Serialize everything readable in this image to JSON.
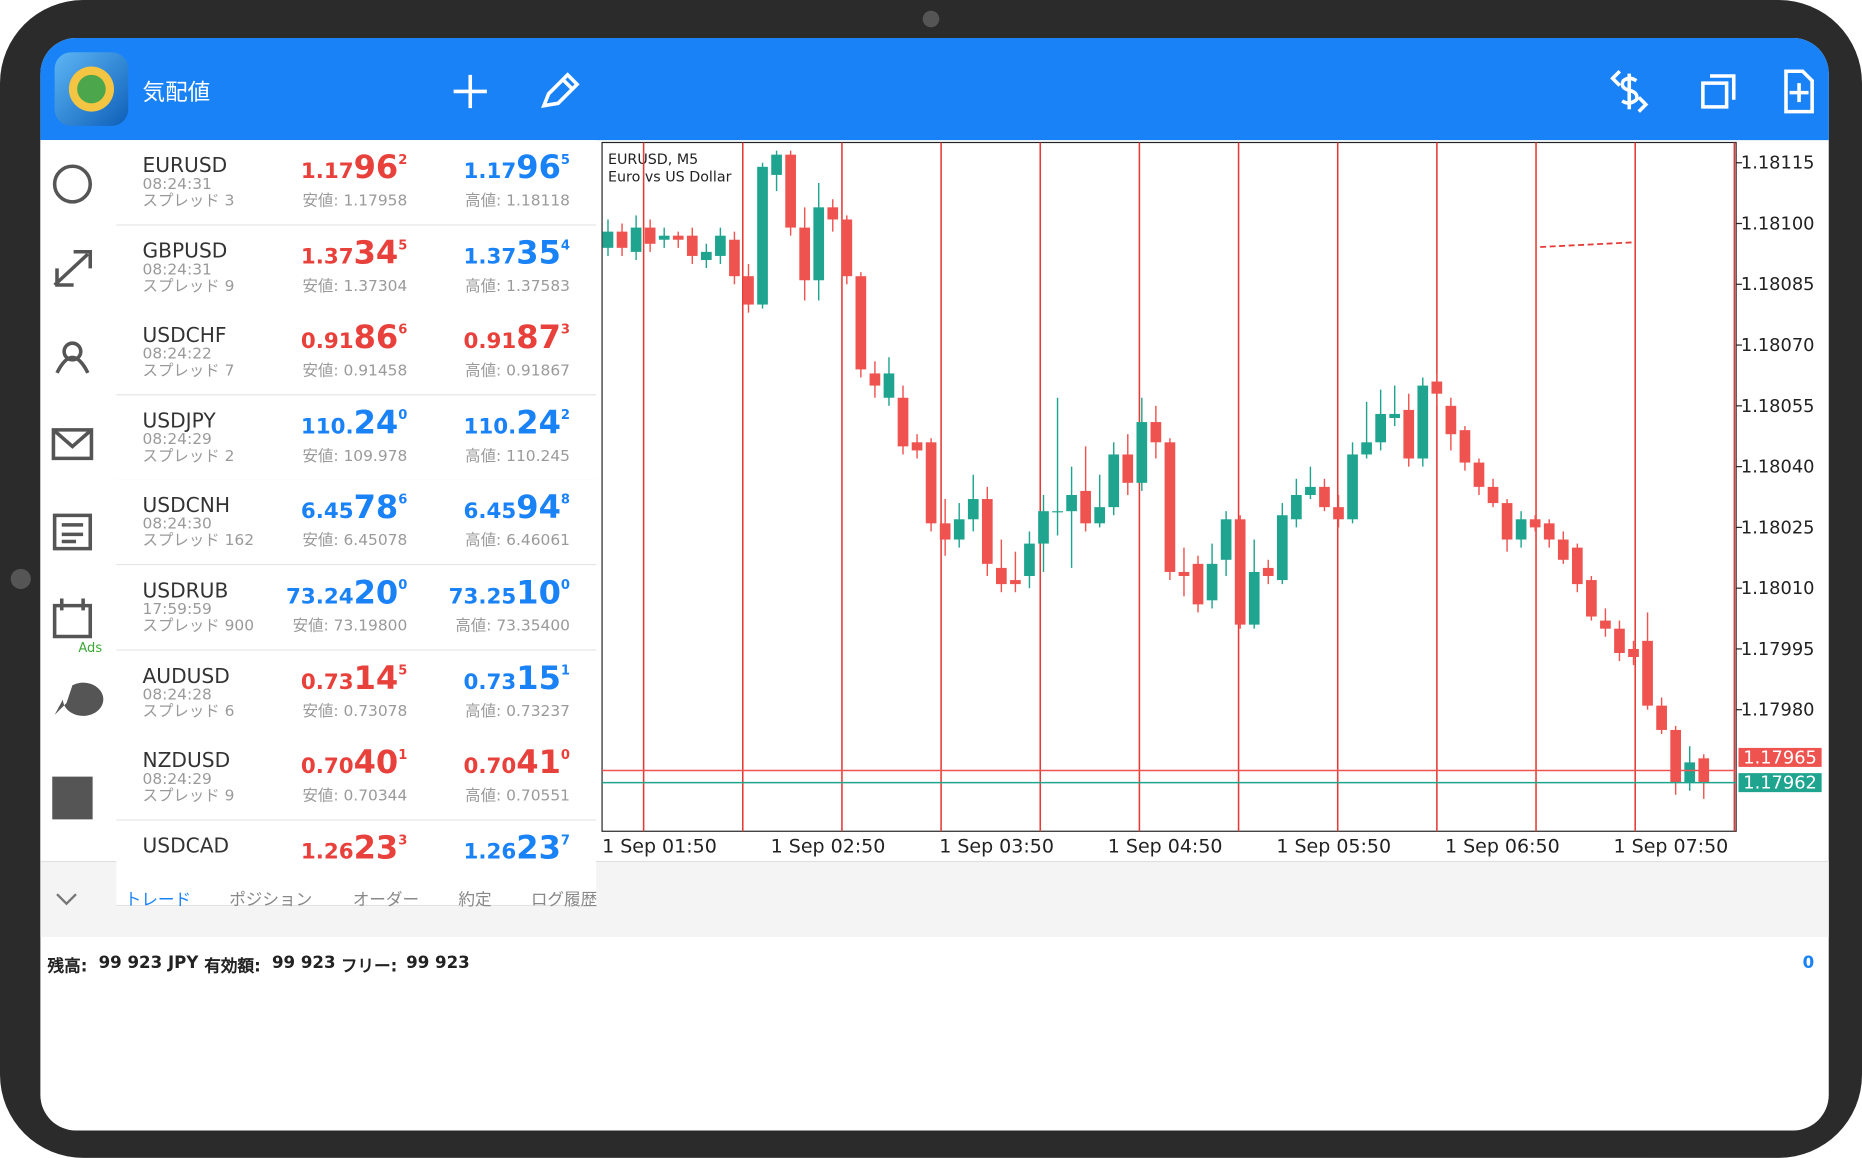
{
  "header": {
    "title": "気配値"
  },
  "sidebar": {
    "ads_label": "Ads"
  },
  "quotes": [
    {
      "symbol": "EURUSD",
      "time": "08:24:31",
      "spread": "スプレッド 3",
      "bid": [
        "1.17",
        "96",
        "2"
      ],
      "bid_color": "#e8413c",
      "low": "安値: 1.17958",
      "ask": [
        "1.17",
        "96",
        "5"
      ],
      "ask_color": "#1a82f7",
      "high": "高値: 1.18118"
    },
    {
      "symbol": "GBPUSD",
      "time": "08:24:31",
      "spread": "スプレッド 9",
      "bid": [
        "1.37",
        "34",
        "5"
      ],
      "bid_color": "#e8413c",
      "low": "安値: 1.37304",
      "ask": [
        "1.37",
        "35",
        "4"
      ],
      "ask_color": "#1a82f7",
      "high": "高値: 1.37583"
    },
    {
      "symbol": "USDCHF",
      "time": "08:24:22",
      "spread": "スプレッド 7",
      "bid": [
        "0.91",
        "86",
        "6"
      ],
      "bid_color": "#e8413c",
      "low": "安値: 0.91458",
      "ask": [
        "0.91",
        "87",
        "3"
      ],
      "ask_color": "#e8413c",
      "high": "高値: 0.91867"
    },
    {
      "symbol": "USDJPY",
      "time": "08:24:29",
      "spread": "スプレッド 2",
      "bid": [
        "110.",
        "24",
        "0"
      ],
      "bid_color": "#1a82f7",
      "low": "安値: 109.978",
      "ask": [
        "110.",
        "24",
        "2"
      ],
      "ask_color": "#1a82f7",
      "high": "高値: 110.245"
    },
    {
      "symbol": "USDCNH",
      "time": "08:24:30",
      "spread": "スプレッド 162",
      "bid": [
        "6.45",
        "78",
        "6"
      ],
      "bid_color": "#1a82f7",
      "low": "安値: 6.45078",
      "ask": [
        "6.45",
        "94",
        "8"
      ],
      "ask_color": "#1a82f7",
      "high": "高値: 6.46061"
    },
    {
      "symbol": "USDRUB",
      "time": "17:59:59",
      "spread": "スプレッド 900",
      "bid": [
        "73.24",
        "20",
        "0"
      ],
      "bid_color": "#1a82f7",
      "low": "安値: 73.19800",
      "ask": [
        "73.25",
        "10",
        "0"
      ],
      "ask_color": "#1a82f7",
      "high": "高値: 73.35400"
    },
    {
      "symbol": "AUDUSD",
      "time": "08:24:28",
      "spread": "スプレッド 6",
      "bid": [
        "0.73",
        "14",
        "5"
      ],
      "bid_color": "#e8413c",
      "low": "安値: 0.73078",
      "ask": [
        "0.73",
        "15",
        "1"
      ],
      "ask_color": "#1a82f7",
      "high": "高値: 0.73237"
    },
    {
      "symbol": "NZDUSD",
      "time": "08:24:29",
      "spread": "スプレッド 9",
      "bid": [
        "0.70",
        "40",
        "1"
      ],
      "bid_color": "#e8413c",
      "low": "安値: 0.70344",
      "ask": [
        "0.70",
        "41",
        "0"
      ],
      "ask_color": "#e8413c",
      "high": "高値: 0.70551"
    },
    {
      "symbol": "USDCAD",
      "bid": [
        "1.26",
        "23",
        "3"
      ],
      "bid_color": "#e8413c",
      "ask": [
        "1.26",
        "23",
        "7"
      ],
      "ask_color": "#1a82f7"
    }
  ],
  "chart_data": {
    "type": "candlestick",
    "title": "EURUSD, M5",
    "subtitle": "Euro vs US Dollar",
    "up_color": "#1fa58f",
    "down_color": "#ef5350",
    "categories": [
      "1 Sep 01:50",
      null,
      null,
      null,
      null,
      null,
      null,
      null,
      null,
      null,
      null,
      null,
      "1 Sep 02:50",
      null,
      null,
      null,
      null,
      null,
      null,
      null,
      null,
      null,
      null,
      null,
      "1 Sep 03:50",
      null,
      null,
      null,
      null,
      null,
      null,
      null,
      null,
      null,
      null,
      null,
      "1 Sep 04:50",
      null,
      null,
      null,
      null,
      null,
      null,
      null,
      null,
      null,
      null,
      null,
      "1 Sep 05:50",
      null,
      null,
      null,
      null,
      null,
      null,
      null,
      null,
      null,
      null,
      null,
      "1 Sep 06:50",
      null,
      null,
      null,
      null,
      null,
      null,
      null,
      null,
      null,
      null,
      null,
      "1 Sep 07:50",
      null,
      null,
      null,
      null,
      null,
      null
    ],
    "open": [
      1.18094,
      1.18098,
      1.18093,
      1.18099,
      1.18096,
      1.18097,
      1.18097,
      1.18091,
      1.18092,
      1.18096,
      1.18087,
      1.1808,
      1.18112,
      1.18117,
      1.18099,
      1.18086,
      1.18104,
      1.18101,
      1.18087,
      1.18063,
      1.18057,
      1.18057,
      1.18046,
      1.18046,
      1.18026,
      1.18022,
      1.18027,
      1.18032,
      1.18015,
      1.18012,
      1.18013,
      1.18021,
      1.18029,
      1.18029,
      1.18034,
      1.18026,
      1.1803,
      1.18043,
      1.18036,
      1.18051,
      1.18046,
      1.18014,
      1.18016,
      1.18007,
      1.18017,
      1.18027,
      1.18001,
      1.18015,
      1.18012,
      1.18027,
      1.18033,
      1.18035,
      1.1803,
      1.18027,
      1.18043,
      1.18046,
      1.18052,
      1.18054,
      1.18042,
      1.18061,
      1.18055,
      1.18049,
      1.18041,
      1.18035,
      1.18031,
      1.18022,
      1.18027,
      1.18026,
      1.18022,
      1.1802,
      1.18012,
      1.18002,
      1.18,
      1.17995,
      1.17997,
      1.17981,
      1.17975,
      1.17962,
      1.17968
    ],
    "high": [
      1.18101,
      1.181,
      1.18102,
      1.18101,
      1.18099,
      1.18098,
      1.18099,
      1.18095,
      1.18099,
      1.18098,
      1.1809,
      1.18115,
      1.18118,
      1.18118,
      1.18104,
      1.1811,
      1.18106,
      1.18102,
      1.18088,
      1.18066,
      1.18067,
      1.1806,
      1.18048,
      1.18047,
      1.18032,
      1.18031,
      1.18038,
      1.18035,
      1.18022,
      1.18019,
      1.18024,
      1.18033,
      1.18057,
      1.1804,
      1.18045,
      1.18038,
      1.18046,
      1.18048,
      1.18057,
      1.18055,
      1.18047,
      1.1802,
      1.18018,
      1.18021,
      1.18029,
      1.18028,
      1.18022,
      1.18017,
      1.18031,
      1.18037,
      1.1804,
      1.18037,
      1.18033,
      1.18046,
      1.18056,
      1.18059,
      1.1806,
      1.18058,
      1.18062,
      1.18063,
      1.18057,
      1.1805,
      1.18042,
      1.18037,
      1.18032,
      1.18029,
      1.18028,
      1.18027,
      1.18024,
      1.18021,
      1.18013,
      1.18005,
      1.18002,
      1.17997,
      1.18004,
      1.17983,
      1.17976,
      1.17971,
      1.17969
    ],
    "low": [
      1.18092,
      1.18092,
      1.18091,
      1.18093,
      1.18094,
      1.18094,
      1.1809,
      1.18089,
      1.1809,
      1.18085,
      1.18078,
      1.18079,
      1.18108,
      1.18097,
      1.18081,
      1.18081,
      1.18098,
      1.18085,
      1.18062,
      1.18057,
      1.18055,
      1.18043,
      1.18042,
      1.18024,
      1.18018,
      1.1802,
      1.18024,
      1.18013,
      1.18009,
      1.18009,
      1.1801,
      1.18014,
      1.18023,
      1.18015,
      1.18024,
      1.18025,
      1.18028,
      1.18033,
      1.18034,
      1.18042,
      1.18012,
      1.18008,
      1.18004,
      1.18005,
      1.18013,
      1.18,
      1.18,
      1.18011,
      1.18011,
      1.18025,
      1.18032,
      1.18029,
      1.18025,
      1.18026,
      1.18042,
      1.18044,
      1.1805,
      1.1804,
      1.1804,
      1.18055,
      1.18044,
      1.18039,
      1.18033,
      1.1803,
      1.18019,
      1.1802,
      1.18024,
      1.1802,
      1.18016,
      1.18009,
      1.18002,
      1.17998,
      1.17992,
      1.17991,
      1.1798,
      1.17974,
      1.17959,
      1.1796,
      1.17958
    ],
    "close": [
      1.18098,
      1.18094,
      1.18099,
      1.18095,
      1.18097,
      1.18096,
      1.18092,
      1.18093,
      1.18097,
      1.18087,
      1.1808,
      1.18114,
      1.18117,
      1.18099,
      1.18086,
      1.18104,
      1.18101,
      1.18087,
      1.18064,
      1.1806,
      1.18063,
      1.18045,
      1.18044,
      1.18026,
      1.18022,
      1.18027,
      1.18032,
      1.18016,
      1.18011,
      1.18011,
      1.18021,
      1.18029,
      1.18029,
      1.18033,
      1.18026,
      1.1803,
      1.18043,
      1.18036,
      1.18051,
      1.18046,
      1.18014,
      1.18013,
      1.18006,
      1.18016,
      1.18027,
      1.18001,
      1.18014,
      1.18013,
      1.18028,
      1.18033,
      1.18035,
      1.1803,
      1.18027,
      1.18043,
      1.18046,
      1.18053,
      1.18053,
      1.18042,
      1.1806,
      1.18058,
      1.18048,
      1.18041,
      1.18035,
      1.18031,
      1.18022,
      1.18027,
      1.18025,
      1.18022,
      1.18017,
      1.18011,
      1.18003,
      1.18,
      1.17994,
      1.17993,
      1.17981,
      1.17975,
      1.17962,
      1.17967,
      1.17962
    ],
    "ylim": [
      1.1795,
      1.1812
    ],
    "yticks": [
      1.18115,
      {
        "value": 1.181,
        "label": "1.18100"
      },
      1.18085,
      {
        "value": 1.1807,
        "label": "1.18070"
      },
      1.18055,
      {
        "value": 1.1804,
        "label": "1.18040"
      },
      1.18025,
      {
        "value": 1.1801,
        "label": "1.18010"
      },
      1.17995,
      {
        "value": 1.1798,
        "label": "1.17980"
      }
    ],
    "ask_line": 1.17965,
    "ask_color": "#ef5350",
    "bid_line": 1.17962,
    "bid_color": "#1fa58f"
  },
  "tabs": [
    "トレード",
    "ポジション",
    "オーダー",
    "約定",
    "ログ履歴"
  ],
  "account": {
    "balance_label": "残高:",
    "balance": "99 923 JPY",
    "equity_label": "有効額:",
    "equity": "99 923",
    "free_label": "フリー:",
    "free": "99 923",
    "count": "0"
  }
}
